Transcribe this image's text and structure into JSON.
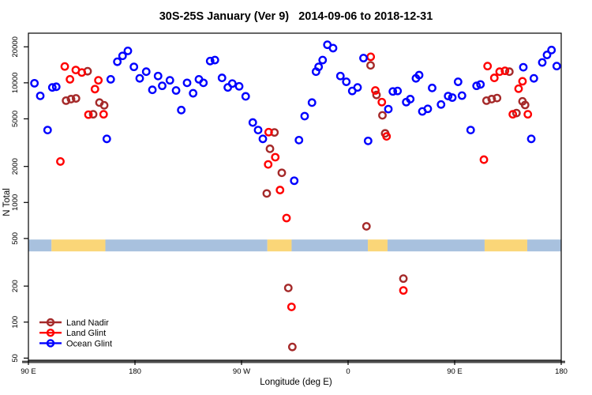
{
  "title": "30S-25S January (Ver 9)   2014-09-06 to 2018-12-31",
  "chart_data": {
    "type": "scatter",
    "title": "30S-25S January (Ver 9)   2014-09-06 to 2018-12-31",
    "xlabel": "Longitude (deg E)",
    "ylabel": "N Total",
    "x_axis": {
      "range": [
        90,
        540
      ],
      "note": "longitude increases eastward from 90E and wraps past 360",
      "ticks": [
        {
          "lon": 90,
          "label": "90 E"
        },
        {
          "lon": 180,
          "label": "180"
        },
        {
          "lon": 270,
          "label": "90 W"
        },
        {
          "lon": 360,
          "label": "0"
        },
        {
          "lon": 450,
          "label": "90 E"
        },
        {
          "lon": 540,
          "label": "180"
        }
      ]
    },
    "y_axis": {
      "scale": "log",
      "range": [
        48,
        26000
      ],
      "ticks": [
        50,
        100,
        200,
        500,
        1000,
        2000,
        5000,
        10000,
        20000
      ]
    },
    "legend": {
      "position": "bottom-left",
      "items": [
        {
          "label": "Land Nadir",
          "color": "#A52A2A"
        },
        {
          "label": "Land Glint",
          "color": "#FF0000"
        },
        {
          "label": "Ocean Glint",
          "color": "#0000FF"
        }
      ]
    },
    "surface_band": {
      "ocean_color": "#A8C1DE",
      "land_color": "#FAD678",
      "value_range": [
        390,
        490
      ],
      "segments": [
        {
          "surface": "ocean",
          "from": 90,
          "to": 109.5
        },
        {
          "surface": "land",
          "from": 109.5,
          "to": 155
        },
        {
          "surface": "ocean",
          "from": 155,
          "to": 291.8
        },
        {
          "surface": "land",
          "from": 291.8,
          "to": 312.3
        },
        {
          "surface": "ocean",
          "from": 312.3,
          "to": 376.7
        },
        {
          "surface": "land",
          "from": 376.7,
          "to": 393.3
        },
        {
          "surface": "ocean",
          "from": 393.3,
          "to": 475.3
        },
        {
          "surface": "land",
          "from": 475.3,
          "to": 511.3
        },
        {
          "surface": "ocean",
          "from": 511.3,
          "to": 540
        }
      ]
    },
    "series": [
      {
        "name": "Land Nadir",
        "color": "#A52A2A",
        "points": [
          [
            140,
            12500
          ],
          [
            121.8,
            7100
          ],
          [
            126,
            7310
          ],
          [
            130.2,
            7410
          ],
          [
            150,
            6840
          ],
          [
            154,
            6490
          ],
          [
            144.7,
            5460
          ],
          [
            297.8,
            3850
          ],
          [
            294,
            2810
          ],
          [
            304,
            1770
          ],
          [
            291.3,
            1190
          ],
          [
            379,
            14000
          ],
          [
            384,
            7920
          ],
          [
            389,
            5350
          ],
          [
            391.3,
            3780
          ],
          [
            375.5,
            632
          ],
          [
            496.2,
            12400
          ],
          [
            476.9,
            7100
          ],
          [
            481.3,
            7310
          ],
          [
            485.8,
            7460
          ],
          [
            507.3,
            7000
          ],
          [
            509.5,
            6530
          ],
          [
            502.2,
            5590
          ],
          [
            309.5,
            193
          ],
          [
            312.9,
            62
          ],
          [
            406.7,
            231
          ]
        ]
      },
      {
        "name": "Land Glint",
        "color": "#FF0000",
        "points": [
          [
            120.7,
            13700
          ],
          [
            125.1,
            10700
          ],
          [
            130,
            12800
          ],
          [
            135.1,
            12200
          ],
          [
            146.2,
            8860
          ],
          [
            149.1,
            10500
          ],
          [
            153.5,
            5460
          ],
          [
            140.7,
            5420
          ],
          [
            117,
            2200
          ],
          [
            292.9,
            3870
          ],
          [
            298.5,
            2390
          ],
          [
            292.5,
            2080
          ],
          [
            302.5,
            1270
          ],
          [
            308,
            741
          ],
          [
            379.1,
            16500
          ],
          [
            383,
            8630
          ],
          [
            388.5,
            6900
          ],
          [
            392.5,
            3570
          ],
          [
            477.8,
            13800
          ],
          [
            483.5,
            11000
          ],
          [
            488,
            12400
          ],
          [
            492.5,
            12600
          ],
          [
            507.3,
            10300
          ],
          [
            504,
            8930
          ],
          [
            499.1,
            5460
          ],
          [
            511.8,
            5460
          ],
          [
            474.7,
            2280
          ],
          [
            312.2,
            134
          ],
          [
            406.7,
            184
          ]
        ]
      },
      {
        "name": "Ocean Glint",
        "color": "#0000FF",
        "points": [
          [
            95.1,
            9920
          ],
          [
            100,
            7780
          ],
          [
            110.2,
            9150
          ],
          [
            113.5,
            9270
          ],
          [
            106.2,
            4030
          ],
          [
            156.2,
            3400
          ],
          [
            159.5,
            10700
          ],
          [
            165.1,
            15000
          ],
          [
            169.5,
            16800
          ],
          [
            174,
            18500
          ],
          [
            179.1,
            13600
          ],
          [
            184,
            10900
          ],
          [
            189.5,
            12400
          ],
          [
            194.7,
            8740
          ],
          [
            199.5,
            11400
          ],
          [
            203,
            9440
          ],
          [
            209.5,
            10500
          ],
          [
            214.7,
            8630
          ],
          [
            219.1,
            5920
          ],
          [
            224,
            10000
          ],
          [
            229.1,
            8180
          ],
          [
            234,
            10700
          ],
          [
            237.8,
            10000
          ],
          [
            243.5,
            15200
          ],
          [
            247.5,
            15500
          ],
          [
            253.5,
            11000
          ],
          [
            258.4,
            9150
          ],
          [
            262.2,
            9860
          ],
          [
            268,
            9350
          ],
          [
            273.5,
            7710
          ],
          [
            279.5,
            4660
          ],
          [
            284,
            4030
          ],
          [
            288,
            3400
          ],
          [
            314.5,
            1520
          ],
          [
            318.5,
            3320
          ],
          [
            323.3,
            5270
          ],
          [
            329.5,
            6840
          ],
          [
            332.9,
            12400
          ],
          [
            335.1,
            13600
          ],
          [
            338.5,
            15500
          ],
          [
            342.5,
            20800
          ],
          [
            347.3,
            19500
          ],
          [
            353.5,
            11400
          ],
          [
            358.5,
            10200
          ],
          [
            363.5,
            8550
          ],
          [
            368,
            9150
          ],
          [
            373,
            16100
          ],
          [
            376.9,
            3270
          ],
          [
            394,
            6030
          ],
          [
            397.8,
            8470
          ],
          [
            401.8,
            8550
          ],
          [
            409.1,
            6900
          ],
          [
            412.5,
            7310
          ],
          [
            417.3,
            10900
          ],
          [
            420,
            11600
          ],
          [
            422.7,
            5770
          ],
          [
            427.3,
            6060
          ],
          [
            431,
            9060
          ],
          [
            438.5,
            6590
          ],
          [
            444.5,
            7750
          ],
          [
            448,
            7530
          ],
          [
            452.9,
            10200
          ],
          [
            456.2,
            7820
          ],
          [
            463.5,
            4030
          ],
          [
            468.5,
            9440
          ],
          [
            471.8,
            9700
          ],
          [
            508,
            13500
          ],
          [
            514.7,
            3400
          ],
          [
            516.9,
            10900
          ],
          [
            524,
            14800
          ],
          [
            528,
            17100
          ],
          [
            531.8,
            18800
          ],
          [
            536.2,
            13800
          ]
        ]
      }
    ],
    "style": {
      "point_radius": 4.2,
      "point_stroke_width": 2.4,
      "box_color": "#000000",
      "bottom_rule_color": "#4d4d4d"
    }
  }
}
